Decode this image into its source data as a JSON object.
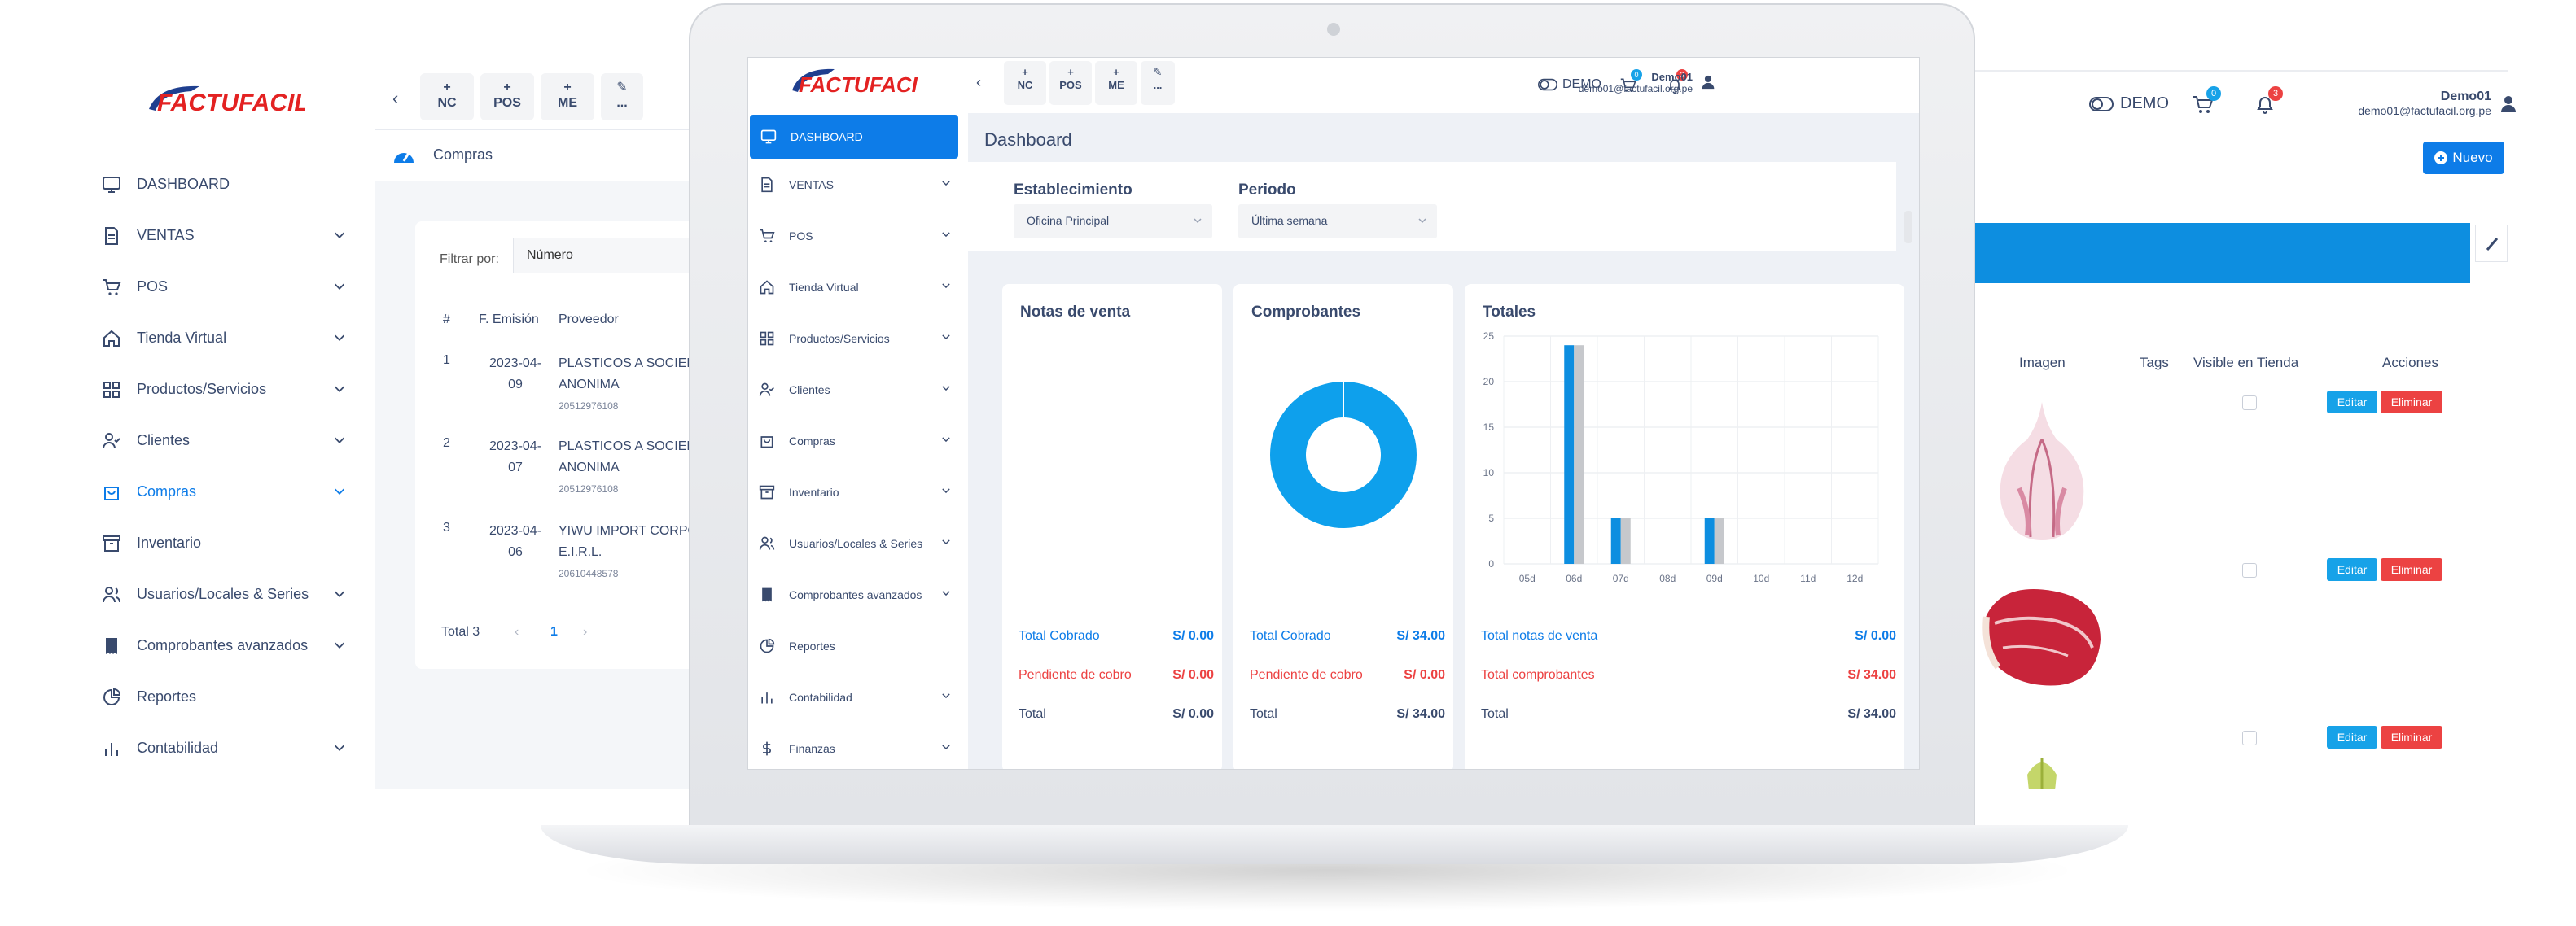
{
  "brand": {
    "logo_text": "FACTUFACIL"
  },
  "back_left": {
    "nav": [
      {
        "label": "DASHBOARD",
        "icon": "monitor-icon",
        "chev": false,
        "active": false
      },
      {
        "label": "VENTAS",
        "icon": "file-icon",
        "chev": true,
        "active": false
      },
      {
        "label": "POS",
        "icon": "cart-icon",
        "chev": true,
        "active": false
      },
      {
        "label": "Tienda Virtual",
        "icon": "home-icon",
        "chev": true,
        "active": false
      },
      {
        "label": "Productos/Servicios",
        "icon": "grid-icon",
        "chev": true,
        "active": false
      },
      {
        "label": "Clientes",
        "icon": "user-check-icon",
        "chev": true,
        "active": false
      },
      {
        "label": "Compras",
        "icon": "bag-icon",
        "chev": true,
        "active": true
      },
      {
        "label": "Inventario",
        "icon": "archive-icon",
        "chev": false,
        "active": false
      },
      {
        "label": "Usuarios/Locales & Series",
        "icon": "users-icon",
        "chev": true,
        "active": false
      },
      {
        "label": "Comprobantes avanzados",
        "icon": "receipt-icon",
        "chev": true,
        "active": false
      },
      {
        "label": "Reportes",
        "icon": "pie-icon",
        "chev": false,
        "active": false
      },
      {
        "label": "Contabilidad",
        "icon": "bars-icon",
        "chev": true,
        "active": false
      }
    ],
    "toolbar": [
      {
        "plus": "+",
        "label": "NC"
      },
      {
        "plus": "+",
        "label": "POS"
      },
      {
        "plus": "+",
        "label": "ME"
      },
      {
        "plus": "✎",
        "label": "..."
      }
    ],
    "breadcrumb": "Compras",
    "filter_label": "Filtrar por:",
    "filter_value": "Número",
    "headers": {
      "num": "#",
      "date": "F. Emisión",
      "provider": "Proveedor"
    },
    "rows": [
      {
        "n": "1",
        "date1": "2023-04-",
        "date2": "09",
        "prov1": "PLASTICOS A SOCIED",
        "prov2": "ANONIMA",
        "ruc": "20512976108"
      },
      {
        "n": "2",
        "date1": "2023-04-",
        "date2": "07",
        "prov1": "PLASTICOS A SOCIED",
        "prov2": "ANONIMA",
        "ruc": "20512976108"
      },
      {
        "n": "3",
        "date1": "2023-04-",
        "date2": "06",
        "prov1": "YIWU IMPORT CORPO",
        "prov2": "E.I.R.L.",
        "ruc": "20610448578"
      }
    ],
    "total": "Total 3",
    "page": "1",
    "prev": "‹",
    "next": "›"
  },
  "back_right": {
    "demo": "DEMO",
    "cart_count": "0",
    "bell_count": "3",
    "user_name": "Demo01",
    "user_email": "demo01@factufacil.org.pe",
    "new_button": "Nuevo",
    "columns": {
      "image": "Imagen",
      "tags": "Tags",
      "visible": "Visible en Tienda",
      "actions": "Acciones"
    },
    "edit_label": "Editar",
    "delete_label": "Eliminar",
    "products": [
      "garlic-image",
      "beef-steak-image",
      "vegetable-image"
    ]
  },
  "screen": {
    "nav": [
      {
        "label": "DASHBOARD",
        "icon": "monitor-icon",
        "chev": false,
        "active": true
      },
      {
        "label": "VENTAS",
        "icon": "file-icon",
        "chev": true,
        "active": false
      },
      {
        "label": "POS",
        "icon": "cart-icon",
        "chev": true,
        "active": false
      },
      {
        "label": "Tienda Virtual",
        "icon": "home-icon",
        "chev": true,
        "active": false
      },
      {
        "label": "Productos/Servicios",
        "icon": "grid-icon",
        "chev": true,
        "active": false
      },
      {
        "label": "Clientes",
        "icon": "user-check-icon",
        "chev": true,
        "active": false
      },
      {
        "label": "Compras",
        "icon": "bag-icon",
        "chev": true,
        "active": false
      },
      {
        "label": "Inventario",
        "icon": "archive-icon",
        "chev": true,
        "active": false
      },
      {
        "label": "Usuarios/Locales & Series",
        "icon": "users-icon",
        "chev": true,
        "active": false
      },
      {
        "label": "Comprobantes avanzados",
        "icon": "receipt-icon",
        "chev": true,
        "active": false
      },
      {
        "label": "Reportes",
        "icon": "pie-icon",
        "chev": false,
        "active": false
      },
      {
        "label": "Contabilidad",
        "icon": "bars-icon",
        "chev": true,
        "active": false
      },
      {
        "label": "Finanzas",
        "icon": "dollar-icon",
        "chev": true,
        "active": false
      }
    ],
    "toolbar": [
      {
        "plus": "+",
        "label": "NC"
      },
      {
        "plus": "+",
        "label": "POS"
      },
      {
        "plus": "+",
        "label": "ME"
      },
      {
        "plus": "✎",
        "label": "..."
      }
    ],
    "demo": "DEMO",
    "cart_count": "0",
    "bell_count": "3",
    "user_name": "Demo01",
    "user_email": "demo01@factufacil.org.pe",
    "page_title": "Dashboard",
    "filters": {
      "establishment_label": "Establecimiento",
      "establishment_value": "Oficina Principal",
      "period_label": "Periodo",
      "period_value": "Última semana"
    },
    "notas": {
      "title": "Notas de venta",
      "rows": [
        {
          "label": "Total Cobrado",
          "value": "S/ 0.00",
          "color": "#0d7ce8"
        },
        {
          "label": "Pendiente de cobro",
          "value": "S/ 0.00",
          "color": "#ec4242"
        },
        {
          "label": "Total",
          "value": "S/ 0.00",
          "color": "#394a6d"
        }
      ]
    },
    "comprobantes": {
      "title": "Comprobantes",
      "rows": [
        {
          "label": "Total Cobrado",
          "value": "S/ 34.00",
          "color": "#0d7ce8"
        },
        {
          "label": "Pendiente de cobro",
          "value": "S/ 0.00",
          "color": "#ec4242"
        },
        {
          "label": "Total",
          "value": "S/ 34.00",
          "color": "#394a6d"
        }
      ]
    },
    "totales": {
      "title": "Totales",
      "rows": [
        {
          "label": "Total notas de venta",
          "value": "S/ 0.00",
          "color": "#0d7ce8"
        },
        {
          "label": "Total comprobantes",
          "value": "S/ 34.00",
          "color": "#ec4242"
        },
        {
          "label": "Total",
          "value": "S/ 34.00",
          "color": "#394a6d"
        }
      ]
    }
  },
  "chart_data": [
    {
      "type": "pie",
      "title": "Comprobantes",
      "labels": [
        "Total Cobrado",
        "Pendiente de cobro"
      ],
      "values": [
        34.0,
        0.0
      ],
      "colors": [
        "#0ea0ec",
        "#ffffff"
      ],
      "donut": true
    },
    {
      "type": "bar",
      "title": "Totales",
      "categories": [
        "05d",
        "06d",
        "07d",
        "08d",
        "09d",
        "10d",
        "11d",
        "12d"
      ],
      "series": [
        {
          "values": [
            0,
            24,
            5,
            0,
            5,
            0,
            0,
            0
          ],
          "color": "#0d8ee0"
        },
        {
          "values": [
            0,
            24,
            5,
            0,
            5,
            0,
            0,
            0
          ],
          "color": "#c6c8cc"
        }
      ],
      "ylim": [
        0,
        25
      ],
      "yticks": [
        "0",
        "5",
        "10",
        "15",
        "20",
        "25"
      ],
      "grid": true
    }
  ]
}
